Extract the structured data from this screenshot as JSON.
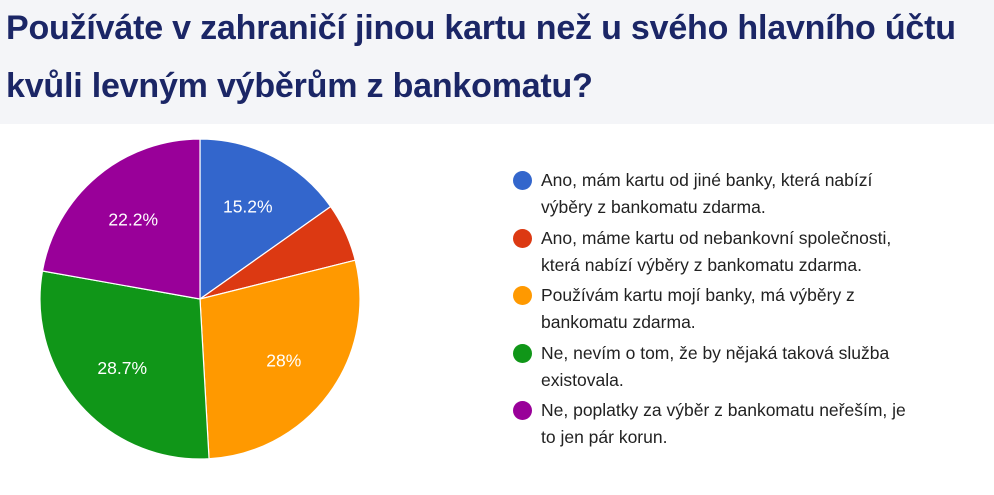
{
  "header": {
    "title_line1": "Používáte v zahraničí jinou kartu než u svého hlavního účtu",
    "title_line2": "kvůli levným výběrům z bankomatu?"
  },
  "chart_data": {
    "type": "pie",
    "slices": [
      {
        "label": "Ano, mám kartu od jiné banky, která nabízí výběry z bankomatu zdarma.",
        "value": 15.2,
        "display": "15.2%",
        "color": "#3366cc"
      },
      {
        "label": "Ano, máme kartu od nebankovní společnosti, která nabízí výběry z bankomatu zdarma.",
        "value": 5.9,
        "display": "",
        "color": "#dc3912"
      },
      {
        "label": "Používám kartu mojí banky, má výběry z bankomatu zdarma.",
        "value": 28.0,
        "display": "28%",
        "color": "#ff9900"
      },
      {
        "label": "Ne, nevím o tom, že by nějaká taková služba existovala.",
        "value": 28.7,
        "display": "28.7%",
        "color": "#109618"
      },
      {
        "label": "Ne, poplatky za výběr z bankomatu neřeším, je to jen pár korun.",
        "value": 22.2,
        "display": "22.2%",
        "color": "#990099"
      }
    ],
    "legend_position": "right"
  },
  "legend": {
    "items": [
      {
        "line1": "Ano, mám kartu od jiné banky, která nabízí",
        "line2": "výběry z bankomatu zdarma."
      },
      {
        "line1": "Ano, máme kartu od nebankovní společnosti,",
        "line2": "která nabízí výběry z bankomatu zdarma."
      },
      {
        "line1": "Používám kartu mojí banky, má výběry z",
        "line2": "bankomatu zdarma."
      },
      {
        "line1": "Ne, nevím o tom, že by nějaká taková služba",
        "line2": "existovala."
      },
      {
        "line1": "Ne, poplatky za výběr z bankomatu neřeším, je",
        "line2": "to jen pár korun."
      }
    ]
  }
}
